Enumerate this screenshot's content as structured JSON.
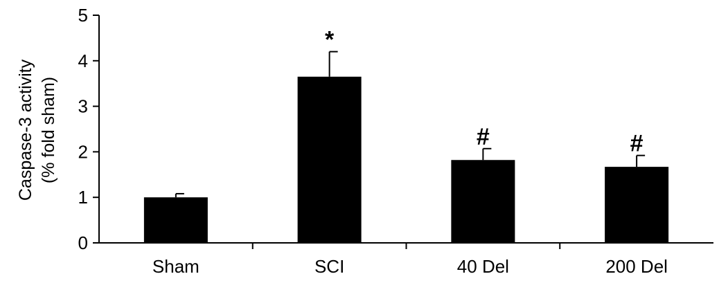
{
  "chart_data": {
    "type": "bar",
    "categories": [
      "Sham",
      "SCI",
      "40 Del",
      "200 Del"
    ],
    "values": [
      1.0,
      3.65,
      1.82,
      1.67
    ],
    "errors": [
      0.08,
      0.55,
      0.25,
      0.25
    ],
    "annotations": [
      "",
      "*",
      "#",
      "#"
    ],
    "ylabel_lines": [
      "Caspase-3 activity",
      "(% fold sham)"
    ],
    "xlabel": "",
    "ylim": [
      0,
      5
    ],
    "yticks": [
      0,
      1,
      2,
      3,
      4,
      5
    ],
    "bar_color": "#000000",
    "grid": false
  }
}
